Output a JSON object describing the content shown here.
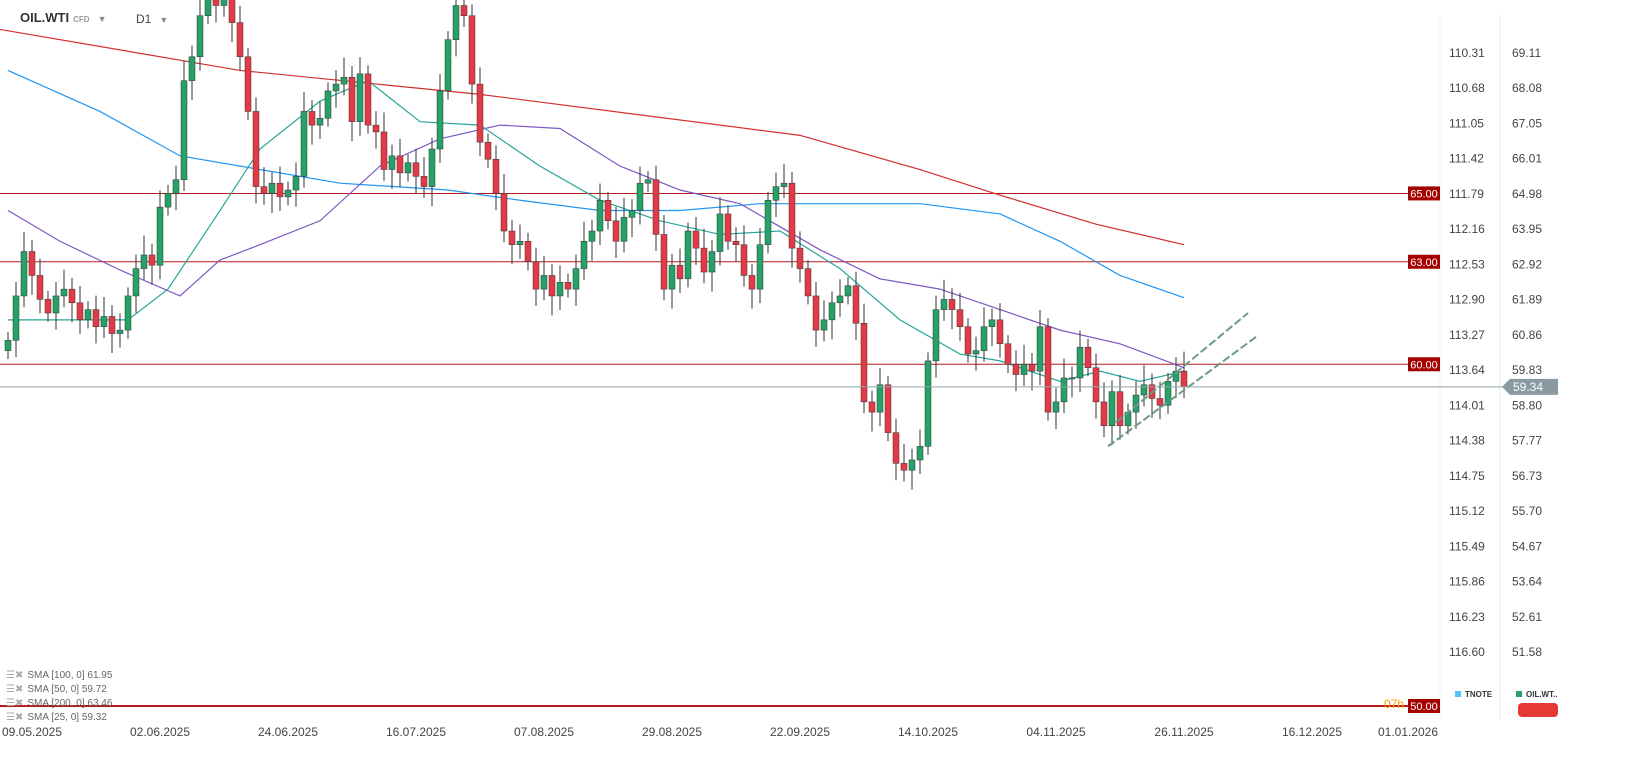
{
  "header": {
    "symbol": "OIL.WTI",
    "symbol_type": "CFD",
    "timeframe": "D1"
  },
  "indicators": [
    {
      "label": "SMA [100,  0] 61.95",
      "color": "#2196f3"
    },
    {
      "label": "SMA [50,  0] 59.72",
      "color": "#7e57c2"
    },
    {
      "label": "SMA [200,  0] 63.46",
      "color": "#d32f2f"
    },
    {
      "label": "SMA [25,  0] 59.32",
      "color": "#26a69a"
    }
  ],
  "legend": [
    {
      "label": "TNOTE",
      "color": "#4fc3f7"
    },
    {
      "label": "OIL.WT..",
      "color": "#26a269"
    }
  ],
  "last_price": "59.34",
  "countdown": "07h",
  "chart_data": {
    "type": "candlestick",
    "x_labels": [
      "09.05.2025",
      "02.06.2025",
      "24.06.2025",
      "16.07.2025",
      "07.08.2025",
      "29.08.2025",
      "22.09.2025",
      "14.10.2025",
      "04.11.2025",
      "26.11.2025",
      "16.12.2025",
      "01.01.2026"
    ],
    "x_label_candle_index": [
      3,
      19,
      35,
      51,
      67,
      83,
      99,
      115,
      131,
      147,
      163,
      175
    ],
    "right_axis": [
      "69.11",
      "68.08",
      "67.05",
      "66.01",
      "64.98",
      "63.95",
      "62.92",
      "61.89",
      "60.86",
      "59.83",
      "58.80",
      "57.77",
      "56.73",
      "55.70",
      "54.67",
      "53.64",
      "52.61",
      "51.58"
    ],
    "left_axis": [
      "110.31",
      "110.68",
      "111.05",
      "111.42",
      "111.79",
      "112.16",
      "112.53",
      "112.90",
      "113.27",
      "113.64",
      "114.01",
      "114.38",
      "114.75",
      "115.12",
      "115.49",
      "115.86",
      "116.23",
      "116.60"
    ],
    "ylim": [
      51.58,
      69.11
    ],
    "closes": [
      60.7,
      62.0,
      63.3,
      62.6,
      61.9,
      61.5,
      62.0,
      62.2,
      61.8,
      61.3,
      61.6,
      61.1,
      61.4,
      60.9,
      61.0,
      62.0,
      62.8,
      63.2,
      62.9,
      64.6,
      65.0,
      65.4,
      68.3,
      69.0,
      70.2,
      70.8,
      70.5,
      71.0,
      70.0,
      69.0,
      67.4,
      65.2,
      65.0,
      65.3,
      64.9,
      65.1,
      65.5,
      67.4,
      67.0,
      67.2,
      68.0,
      68.2,
      68.4,
      67.1,
      68.5,
      67.0,
      66.8,
      65.7,
      66.1,
      65.6,
      65.9,
      65.5,
      65.2,
      66.3,
      68.0,
      69.5,
      70.5,
      70.2,
      68.2,
      66.5,
      66.0,
      65.0,
      63.9,
      63.5,
      63.6,
      63.0,
      62.2,
      62.6,
      62.0,
      62.4,
      62.2,
      62.8,
      63.6,
      63.9,
      64.8,
      64.2,
      63.6,
      64.3,
      64.5,
      65.3,
      65.4,
      63.8,
      62.2,
      62.9,
      62.5,
      63.9,
      63.4,
      62.7,
      63.3,
      64.4,
      63.6,
      63.5,
      62.6,
      62.2,
      63.5,
      64.8,
      65.2,
      65.3,
      63.4,
      62.8,
      62.0,
      61.0,
      61.3,
      61.8,
      62.0,
      62.3,
      61.2,
      58.9,
      58.6,
      59.4,
      58.0,
      57.1,
      56.9,
      57.2,
      57.6,
      60.1,
      61.6,
      61.9,
      61.6,
      61.1,
      60.3,
      60.4,
      61.1,
      61.3,
      60.6,
      60.0,
      59.7,
      60.0,
      59.8,
      61.1,
      58.6,
      58.9,
      59.6,
      59.6,
      60.5,
      59.9,
      58.9,
      58.2,
      59.2,
      58.2,
      58.6,
      59.1,
      59.4,
      59.0,
      58.8,
      59.5,
      59.8,
      59.34
    ],
    "sma": [
      {
        "name": "SMA 200",
        "color": "#d32f2f",
        "points": [
          [
            -1,
            69.8
          ],
          [
            29,
            68.6
          ],
          [
            59,
            67.9
          ],
          [
            79,
            67.3
          ],
          [
            99,
            66.7
          ],
          [
            114,
            65.7
          ],
          [
            124,
            64.95
          ],
          [
            136,
            64.1
          ],
          [
            147,
            63.5
          ]
        ]
      },
      {
        "name": "SMA 100",
        "color": "#2196f3",
        "points": [
          [
            0,
            68.6
          ],
          [
            11.5,
            67.4
          ],
          [
            21.5,
            66.1
          ],
          [
            31.5,
            65.7
          ],
          [
            41.5,
            65.3
          ],
          [
            55,
            65.1
          ],
          [
            64,
            64.8
          ],
          [
            74,
            64.5
          ],
          [
            84,
            64.5
          ],
          [
            94,
            64.7
          ],
          [
            104,
            64.7
          ],
          [
            114,
            64.7
          ],
          [
            124,
            64.4
          ],
          [
            131.5,
            63.6
          ],
          [
            139,
            62.6
          ],
          [
            147,
            61.95
          ]
        ]
      },
      {
        "name": "SMA 50",
        "color": "#7e57c2",
        "points": [
          [
            0,
            64.5
          ],
          [
            6.5,
            63.6
          ],
          [
            14,
            62.76
          ],
          [
            21.5,
            62.0
          ],
          [
            26.5,
            63.05
          ],
          [
            31.5,
            63.5
          ],
          [
            39,
            64.2
          ],
          [
            46.5,
            65.8
          ],
          [
            54,
            66.6
          ],
          [
            61.5,
            67.0
          ],
          [
            69,
            66.9
          ],
          [
            76.5,
            65.8
          ],
          [
            84,
            65.1
          ],
          [
            91.5,
            64.7
          ],
          [
            101.5,
            63.35
          ],
          [
            109,
            62.5
          ],
          [
            116.5,
            62.2
          ],
          [
            124,
            61.6
          ],
          [
            131.5,
            61.0
          ],
          [
            139,
            60.6
          ],
          [
            147,
            59.9
          ]
        ]
      },
      {
        "name": "SMA 25",
        "color": "#26a69a",
        "points": [
          [
            0,
            61.3
          ],
          [
            9,
            61.3
          ],
          [
            15,
            61.3
          ],
          [
            20,
            62.2
          ],
          [
            26.5,
            64.5
          ],
          [
            31.5,
            66.3
          ],
          [
            39,
            67.7
          ],
          [
            45,
            68.3
          ],
          [
            51.5,
            67.1
          ],
          [
            59,
            67.0
          ],
          [
            66.5,
            65.8
          ],
          [
            74,
            64.8
          ],
          [
            81.5,
            64.2
          ],
          [
            89,
            63.8
          ],
          [
            96.5,
            63.9
          ],
          [
            104,
            62.8
          ],
          [
            111.5,
            61.3
          ],
          [
            119,
            60.3
          ],
          [
            124,
            60.1
          ],
          [
            131.5,
            59.5
          ],
          [
            136.5,
            59.8
          ],
          [
            141.5,
            59.5
          ],
          [
            147,
            59.8
          ]
        ]
      }
    ],
    "levels": [
      "65.00",
      "63.00",
      "60.00",
      "50.00"
    ],
    "channel": [
      {
        "from": [
          138.5,
          58.3
        ],
        "to": [
          155,
          61.5
        ]
      },
      {
        "from": [
          137.5,
          57.6
        ],
        "to": [
          156,
          60.8
        ]
      }
    ]
  }
}
